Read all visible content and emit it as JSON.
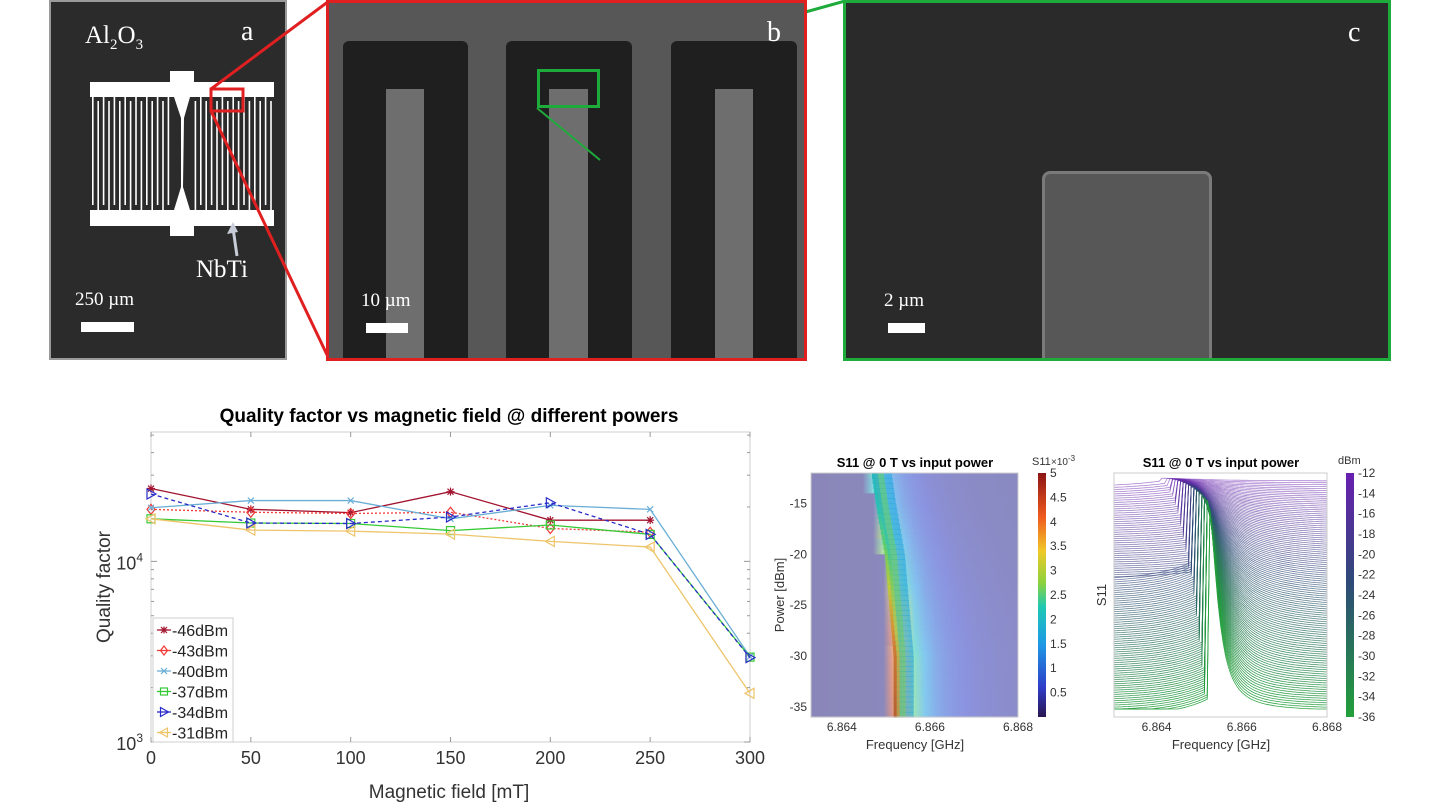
{
  "panels": {
    "a": {
      "letter": "a",
      "substrate_label": "Al",
      "sub1": "2",
      "mid": "O",
      "sub2": "3",
      "material_label": "NbTi",
      "scale_label": "250 µm",
      "frame_color": "#9a9a9a"
    },
    "b": {
      "letter": "b",
      "scale_label": "10 µm",
      "frame_color": "#e02020"
    },
    "c": {
      "letter": "c",
      "scale_label": "2 µm",
      "frame_color": "#1faa3c"
    }
  },
  "chart_data": [
    {
      "type": "line",
      "title": "Quality factor vs magnetic field @ different powers",
      "xlabel": "Magnetic field [mT]",
      "ylabel": "Quality factor",
      "xlim": [
        0,
        300
      ],
      "ylim": [
        1000,
        52000
      ],
      "yscale": "log",
      "xticks": [
        0,
        50,
        100,
        150,
        200,
        250,
        300
      ],
      "yticks": [
        {
          "base": "10",
          "exp": "3",
          "value": 1000
        },
        {
          "base": "10",
          "exp": "4",
          "value": 10000
        }
      ],
      "grid": false,
      "legend_position": "bottom-left",
      "x": [
        0,
        50,
        100,
        150,
        200,
        250,
        300
      ],
      "series": [
        {
          "name": "-46dBm",
          "color": "#a2142f",
          "marker": "star",
          "dash": "solid",
          "values": [
            25300,
            19400,
            18600,
            24300,
            16900,
            16900,
            null
          ]
        },
        {
          "name": "-43dBm",
          "color": "#f03a3a",
          "marker": "diamond",
          "dash": "dotted",
          "values": [
            19400,
            18700,
            18400,
            18700,
            15200,
            14500,
            null
          ]
        },
        {
          "name": "-40dBm",
          "color": "#6aaed6",
          "marker": "x",
          "dash": "solid",
          "values": [
            19800,
            21700,
            21700,
            17200,
            20400,
            19400,
            2970
          ]
        },
        {
          "name": "-37dBm",
          "color": "#35c935",
          "marker": "square",
          "dash": "solid",
          "values": [
            17200,
            16300,
            16200,
            14800,
            15900,
            14100,
            2950
          ]
        },
        {
          "name": "-34dBm",
          "color": "#2a2ac8",
          "marker": "triangle-right",
          "dash": "dashed",
          "values": [
            23600,
            16300,
            16200,
            17600,
            21100,
            14100,
            2930
          ]
        },
        {
          "name": "-31dBm",
          "color": "#eec46a",
          "marker": "triangle-left",
          "dash": "solid",
          "values": [
            17200,
            14900,
            14700,
            14150,
            12900,
            12000,
            1860
          ]
        }
      ]
    },
    {
      "type": "heatmap",
      "title": "S11 @ 0 T vs input power",
      "xlabel": "Frequency [GHz]",
      "ylabel": "Power [dBm]",
      "xlim": [
        6.8633,
        6.868
      ],
      "ylim": [
        -36,
        -12
      ],
      "xticks": [
        "6.864",
        "6.866",
        "6.868"
      ],
      "yticks": [
        "-15",
        "-20",
        "-25",
        "-30",
        "-35"
      ],
      "colorbar": {
        "label": "S11",
        "exponent_base": "10",
        "exponent": "-3",
        "range": [
          0,
          5
        ],
        "ticks": [
          "5",
          "4.5",
          "4",
          "3.5",
          "3",
          "2.5",
          "2",
          "1.5",
          "1",
          "0.5"
        ],
        "colormap": "jet"
      },
      "ridge": {
        "power_dbm": [
          -12,
          -15,
          -20,
          -25,
          -30,
          -36
        ],
        "peak_frequency_ghz": [
          6.8647,
          6.8648,
          6.865,
          6.8651,
          6.8652,
          6.8652
        ],
        "peak_s11_e-3": [
          2.0,
          2.2,
          2.8,
          3.7,
          4.3,
          4.6
        ]
      }
    },
    {
      "type": "line",
      "title": "S11 @ 0 T vs input power",
      "xlabel": "Frequency [GHz]",
      "ylabel": "S11",
      "xlim": [
        6.863,
        6.868
      ],
      "xticks": [
        "6.864",
        "6.866",
        "6.868"
      ],
      "colorbar": {
        "label": "dBm",
        "range": [
          -36,
          -12
        ],
        "ticks": [
          "-12",
          "-14",
          "-16",
          "-18",
          "-20",
          "-22",
          "-24",
          "-26",
          "-28",
          "-30",
          "-32",
          "-34",
          "-36"
        ],
        "color_high": "#6a1fb0",
        "color_low": "#22a03a"
      },
      "power_range_dbm": [
        -36,
        -12
      ]
    }
  ]
}
